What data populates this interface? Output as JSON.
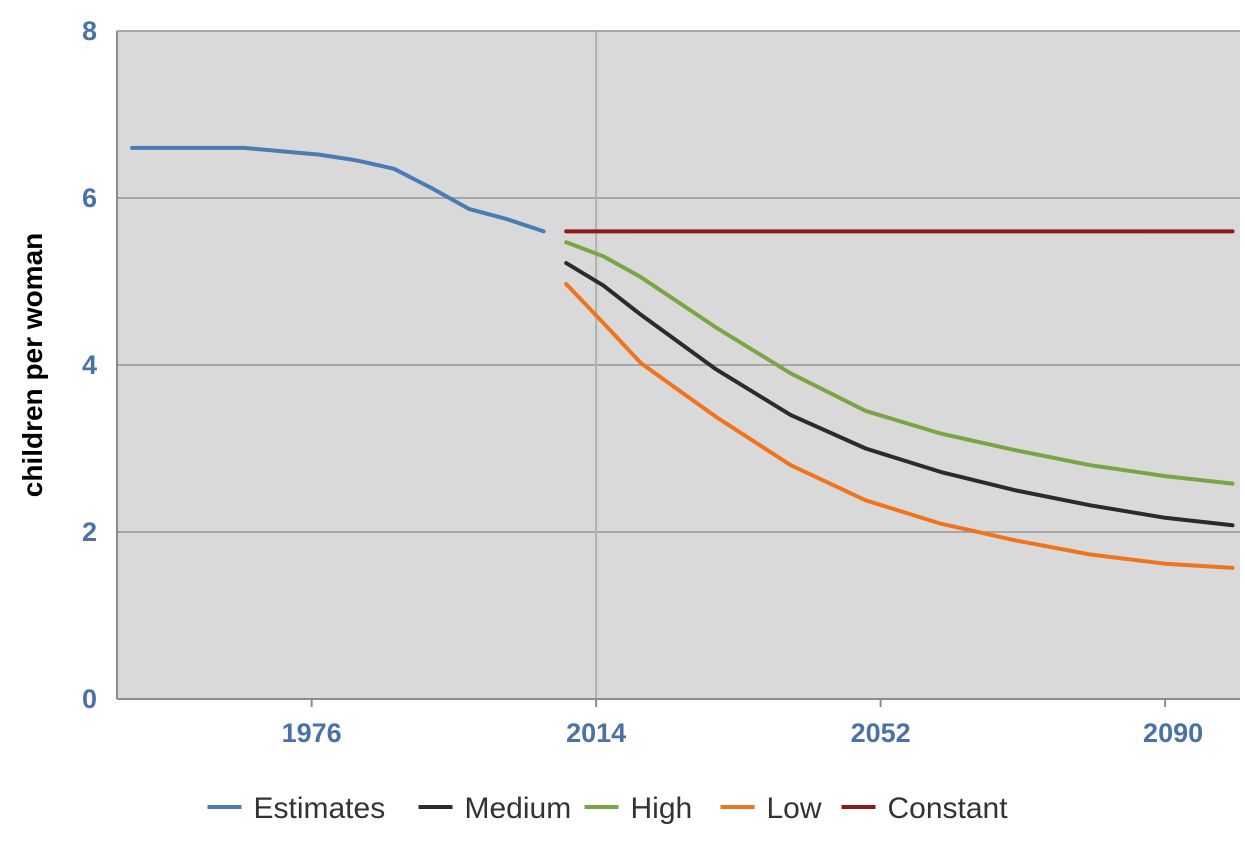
{
  "chart_data": {
    "type": "line",
    "title": "",
    "xlabel": "",
    "ylabel": "children per woman",
    "xlim": [
      1950,
      2100
    ],
    "ylim": [
      0,
      8
    ],
    "x_ticks": [
      1976,
      2014,
      2052,
      2090
    ],
    "x_tick_labels": [
      "1976",
      "2014",
      "2052",
      "2090"
    ],
    "y_ticks": [
      0,
      2,
      4,
      6,
      8
    ],
    "y_tick_labels": [
      "0",
      "2",
      "4",
      "6",
      "8"
    ],
    "grid": true,
    "legend_position": "bottom",
    "colors": {
      "axis_text": "#4a72a8",
      "plot_background": "#d9d9d9",
      "gridline": "#a6a6a6"
    },
    "series": [
      {
        "name": "Estimates",
        "color": "#4a7bb3",
        "points": [
          [
            1952,
            6.6
          ],
          [
            1967,
            6.6
          ],
          [
            1977,
            6.52
          ],
          [
            1982,
            6.45
          ],
          [
            1987,
            6.35
          ],
          [
            1992,
            6.12
          ],
          [
            1997,
            5.87
          ],
          [
            2002,
            5.75
          ],
          [
            2007,
            5.6
          ]
        ]
      },
      {
        "name": "Medium",
        "color": "#2b2b2b",
        "points": [
          [
            2010,
            5.22
          ],
          [
            2015,
            4.95
          ],
          [
            2020,
            4.6
          ],
          [
            2030,
            3.95
          ],
          [
            2040,
            3.4
          ],
          [
            2050,
            3.0
          ],
          [
            2060,
            2.72
          ],
          [
            2070,
            2.5
          ],
          [
            2080,
            2.32
          ],
          [
            2090,
            2.17
          ],
          [
            2099,
            2.08
          ]
        ]
      },
      {
        "name": "High",
        "color": "#7aa545",
        "points": [
          [
            2010,
            5.47
          ],
          [
            2015,
            5.3
          ],
          [
            2020,
            5.05
          ],
          [
            2030,
            4.45
          ],
          [
            2040,
            3.9
          ],
          [
            2050,
            3.45
          ],
          [
            2060,
            3.18
          ],
          [
            2070,
            2.98
          ],
          [
            2080,
            2.8
          ],
          [
            2090,
            2.67
          ],
          [
            2099,
            2.58
          ]
        ]
      },
      {
        "name": "Low",
        "color": "#f0731e",
        "points": [
          [
            2010,
            4.97
          ],
          [
            2015,
            4.5
          ],
          [
            2020,
            4.02
          ],
          [
            2030,
            3.38
          ],
          [
            2040,
            2.8
          ],
          [
            2050,
            2.38
          ],
          [
            2060,
            2.1
          ],
          [
            2070,
            1.9
          ],
          [
            2080,
            1.73
          ],
          [
            2090,
            1.62
          ],
          [
            2099,
            1.57
          ]
        ]
      },
      {
        "name": "Constant",
        "color": "#8b1a1a",
        "points": [
          [
            2010,
            5.6
          ],
          [
            2099,
            5.6
          ]
        ]
      }
    ]
  }
}
